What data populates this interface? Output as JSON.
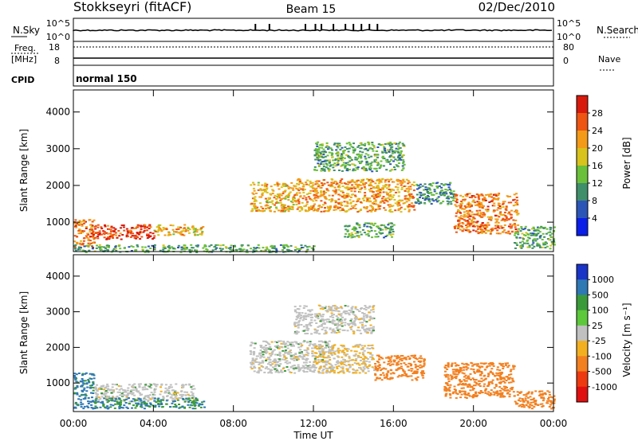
{
  "header": {
    "station": "Stokkseyri (fitACF)",
    "beam": "Beam 15",
    "date": "02/Dec/2010"
  },
  "status_panel": {
    "left_labels": [
      "N.Sky",
      "Freq.",
      "[MHz]",
      "CPID"
    ],
    "right_labels": [
      "N.Search",
      "Nave"
    ],
    "nsky_ticks": [
      "10^5",
      "10^0"
    ],
    "freq_ticks": [
      "18",
      "8"
    ],
    "nave_ticks": [
      "80",
      "0"
    ],
    "cpid_text": "normal 150",
    "nsky_peak_times_h": [
      9.1,
      9.8,
      11.6,
      12.1,
      12.4,
      13.0,
      13.6,
      14.0,
      14.4,
      14.8,
      15.2
    ]
  },
  "chart_data": [
    {
      "type": "heatmap",
      "panel": "power",
      "ylabel": "Slant Range [km]",
      "xlabel": "",
      "x_unit": "hours UT",
      "xlim": [
        0,
        24
      ],
      "ylim": [
        200,
        4600
      ],
      "yticks": [
        "1000",
        "2000",
        "3000",
        "4000"
      ],
      "xticks": [
        "00:00",
        "04:00",
        "08:00",
        "12:00",
        "16:00",
        "20:00",
        "00:00"
      ],
      "colorbar": {
        "label": "Power [dB]",
        "ticks": [
          "4",
          "8",
          "12",
          "16",
          "20",
          "24",
          "28"
        ],
        "colors": [
          "#0a1ee8",
          "#2c55b8",
          "#3f8f6a",
          "#6ac03a",
          "#d8c21c",
          "#f39a18",
          "#ee5512",
          "#d81a0c"
        ]
      },
      "regions": [
        {
          "t0": 0.0,
          "t1": 1.0,
          "r0": 300,
          "r1": 1100,
          "level": 24
        },
        {
          "t0": 0.8,
          "t1": 4.0,
          "r0": 550,
          "r1": 950,
          "level": 28
        },
        {
          "t0": 4.0,
          "t1": 6.5,
          "r0": 650,
          "r1": 950,
          "level": 20
        },
        {
          "t0": 0.0,
          "t1": 12.0,
          "r0": 200,
          "r1": 400,
          "level": 12
        },
        {
          "t0": 8.8,
          "t1": 11.0,
          "r0": 1300,
          "r1": 2100,
          "level": 20
        },
        {
          "t0": 11.0,
          "t1": 17.0,
          "r0": 1300,
          "r1": 2200,
          "level": 22
        },
        {
          "t0": 12.0,
          "t1": 16.5,
          "r0": 2400,
          "r1": 3200,
          "level": 12
        },
        {
          "t0": 13.5,
          "t1": 16.0,
          "r0": 600,
          "r1": 1000,
          "level": 12
        },
        {
          "t0": 17.0,
          "t1": 19.0,
          "r0": 1500,
          "r1": 2100,
          "level": 10
        },
        {
          "t0": 19.0,
          "t1": 22.2,
          "r0": 700,
          "r1": 1800,
          "level": 24
        },
        {
          "t0": 22.0,
          "t1": 24.0,
          "r0": 300,
          "r1": 900,
          "level": 12
        }
      ]
    },
    {
      "type": "heatmap",
      "panel": "velocity",
      "ylabel": "Slant Range [km]",
      "xlabel": "Time UT",
      "x_unit": "hours UT",
      "xlim": [
        0,
        24
      ],
      "ylim": [
        200,
        4600
      ],
      "yticks": [
        "1000",
        "2000",
        "3000",
        "4000"
      ],
      "xticks": [
        "00:00",
        "04:00",
        "08:00",
        "12:00",
        "16:00",
        "20:00",
        "00:00"
      ],
      "colorbar": {
        "label": "Velocity [m s⁻¹]",
        "ticks": [
          "1000",
          "500",
          "100",
          "25",
          "-25",
          "-100",
          "-500",
          "-1000"
        ],
        "colors": [
          "#1a34c8",
          "#2e78b4",
          "#3a9a3a",
          "#5cc83a",
          "#c0c0c0",
          "#f2b020",
          "#f28020",
          "#ee3a10",
          "#e01010"
        ]
      },
      "regions": [
        {
          "t0": 0.0,
          "t1": 1.0,
          "r0": 300,
          "r1": 1300,
          "level": 150
        },
        {
          "t0": 1.0,
          "t1": 6.0,
          "r0": 500,
          "r1": 1000,
          "level": 0
        },
        {
          "t0": 1.0,
          "t1": 6.5,
          "r0": 300,
          "r1": 600,
          "level": 100
        },
        {
          "t0": 8.8,
          "t1": 13.0,
          "r0": 1300,
          "r1": 2200,
          "level": 0
        },
        {
          "t0": 11.0,
          "t1": 15.0,
          "r0": 2400,
          "r1": 3200,
          "level": 0
        },
        {
          "t0": 12.0,
          "t1": 15.0,
          "r0": 1300,
          "r1": 2100,
          "level": -30
        },
        {
          "t0": 15.0,
          "t1": 17.5,
          "r0": 1100,
          "r1": 1800,
          "level": -300
        },
        {
          "t0": 18.5,
          "t1": 22.0,
          "r0": 600,
          "r1": 1600,
          "level": -200
        },
        {
          "t0": 22.0,
          "t1": 24.0,
          "r0": 300,
          "r1": 800,
          "level": -300
        }
      ]
    }
  ]
}
